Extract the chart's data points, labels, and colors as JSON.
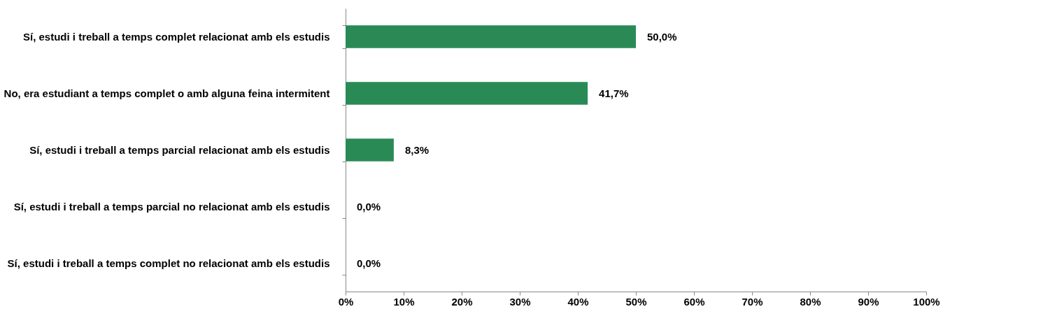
{
  "chart_data": {
    "type": "bar",
    "orientation": "horizontal",
    "categories": [
      "Sí, estudi i treball a temps complet relacionat amb els estudis",
      "No, era estudiant a temps complet o amb alguna feina intermitent",
      "Sí, estudi i treball a temps parcial relacionat amb els estudis",
      "Sí, estudi i treball a temps parcial no relacionat amb els estudis",
      "Sí, estudi i treball a temps complet no relacionat amb els estudis"
    ],
    "values": [
      50.0,
      41.7,
      8.3,
      0,
      0
    ],
    "value_labels": [
      "50,0%",
      "41,7%",
      "8,3%",
      "0,0%",
      "0,0%"
    ],
    "color": "#2a8a55",
    "xlim": [
      0,
      100
    ],
    "xticks": [
      {
        "value": 0,
        "label": "0%"
      },
      {
        "value": 10,
        "label": "10%"
      },
      {
        "value": 20,
        "label": "20%"
      },
      {
        "value": 30,
        "label": "30%"
      },
      {
        "value": 40,
        "label": "40%"
      },
      {
        "value": 50,
        "label": "50%"
      },
      {
        "value": 60,
        "label": "60%"
      },
      {
        "value": 70,
        "label": "70%"
      },
      {
        "value": 80,
        "label": "80%"
      },
      {
        "value": 90,
        "label": "90%"
      },
      {
        "value": 100,
        "label": "100%"
      }
    ],
    "grid": false
  }
}
